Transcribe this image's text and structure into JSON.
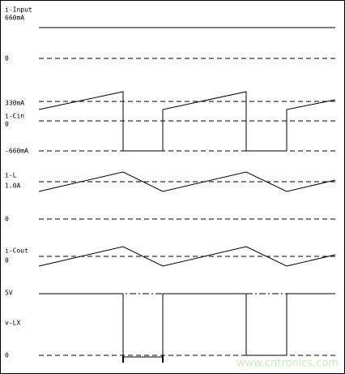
{
  "signals": [
    {
      "name": "i-Input",
      "levels": [
        "660mA",
        "0"
      ]
    },
    {
      "name": "i-Cin",
      "levels": [
        "330mA",
        "0",
        "-660mA"
      ]
    },
    {
      "name": "i-L",
      "levels": [
        "1.0A",
        "0"
      ]
    },
    {
      "name": "i-Cout",
      "levels": [
        "0"
      ]
    },
    {
      "name": "v-LX",
      "levels": [
        "5V",
        "0"
      ]
    }
  ],
  "watermark": "www.cntronics.com"
}
